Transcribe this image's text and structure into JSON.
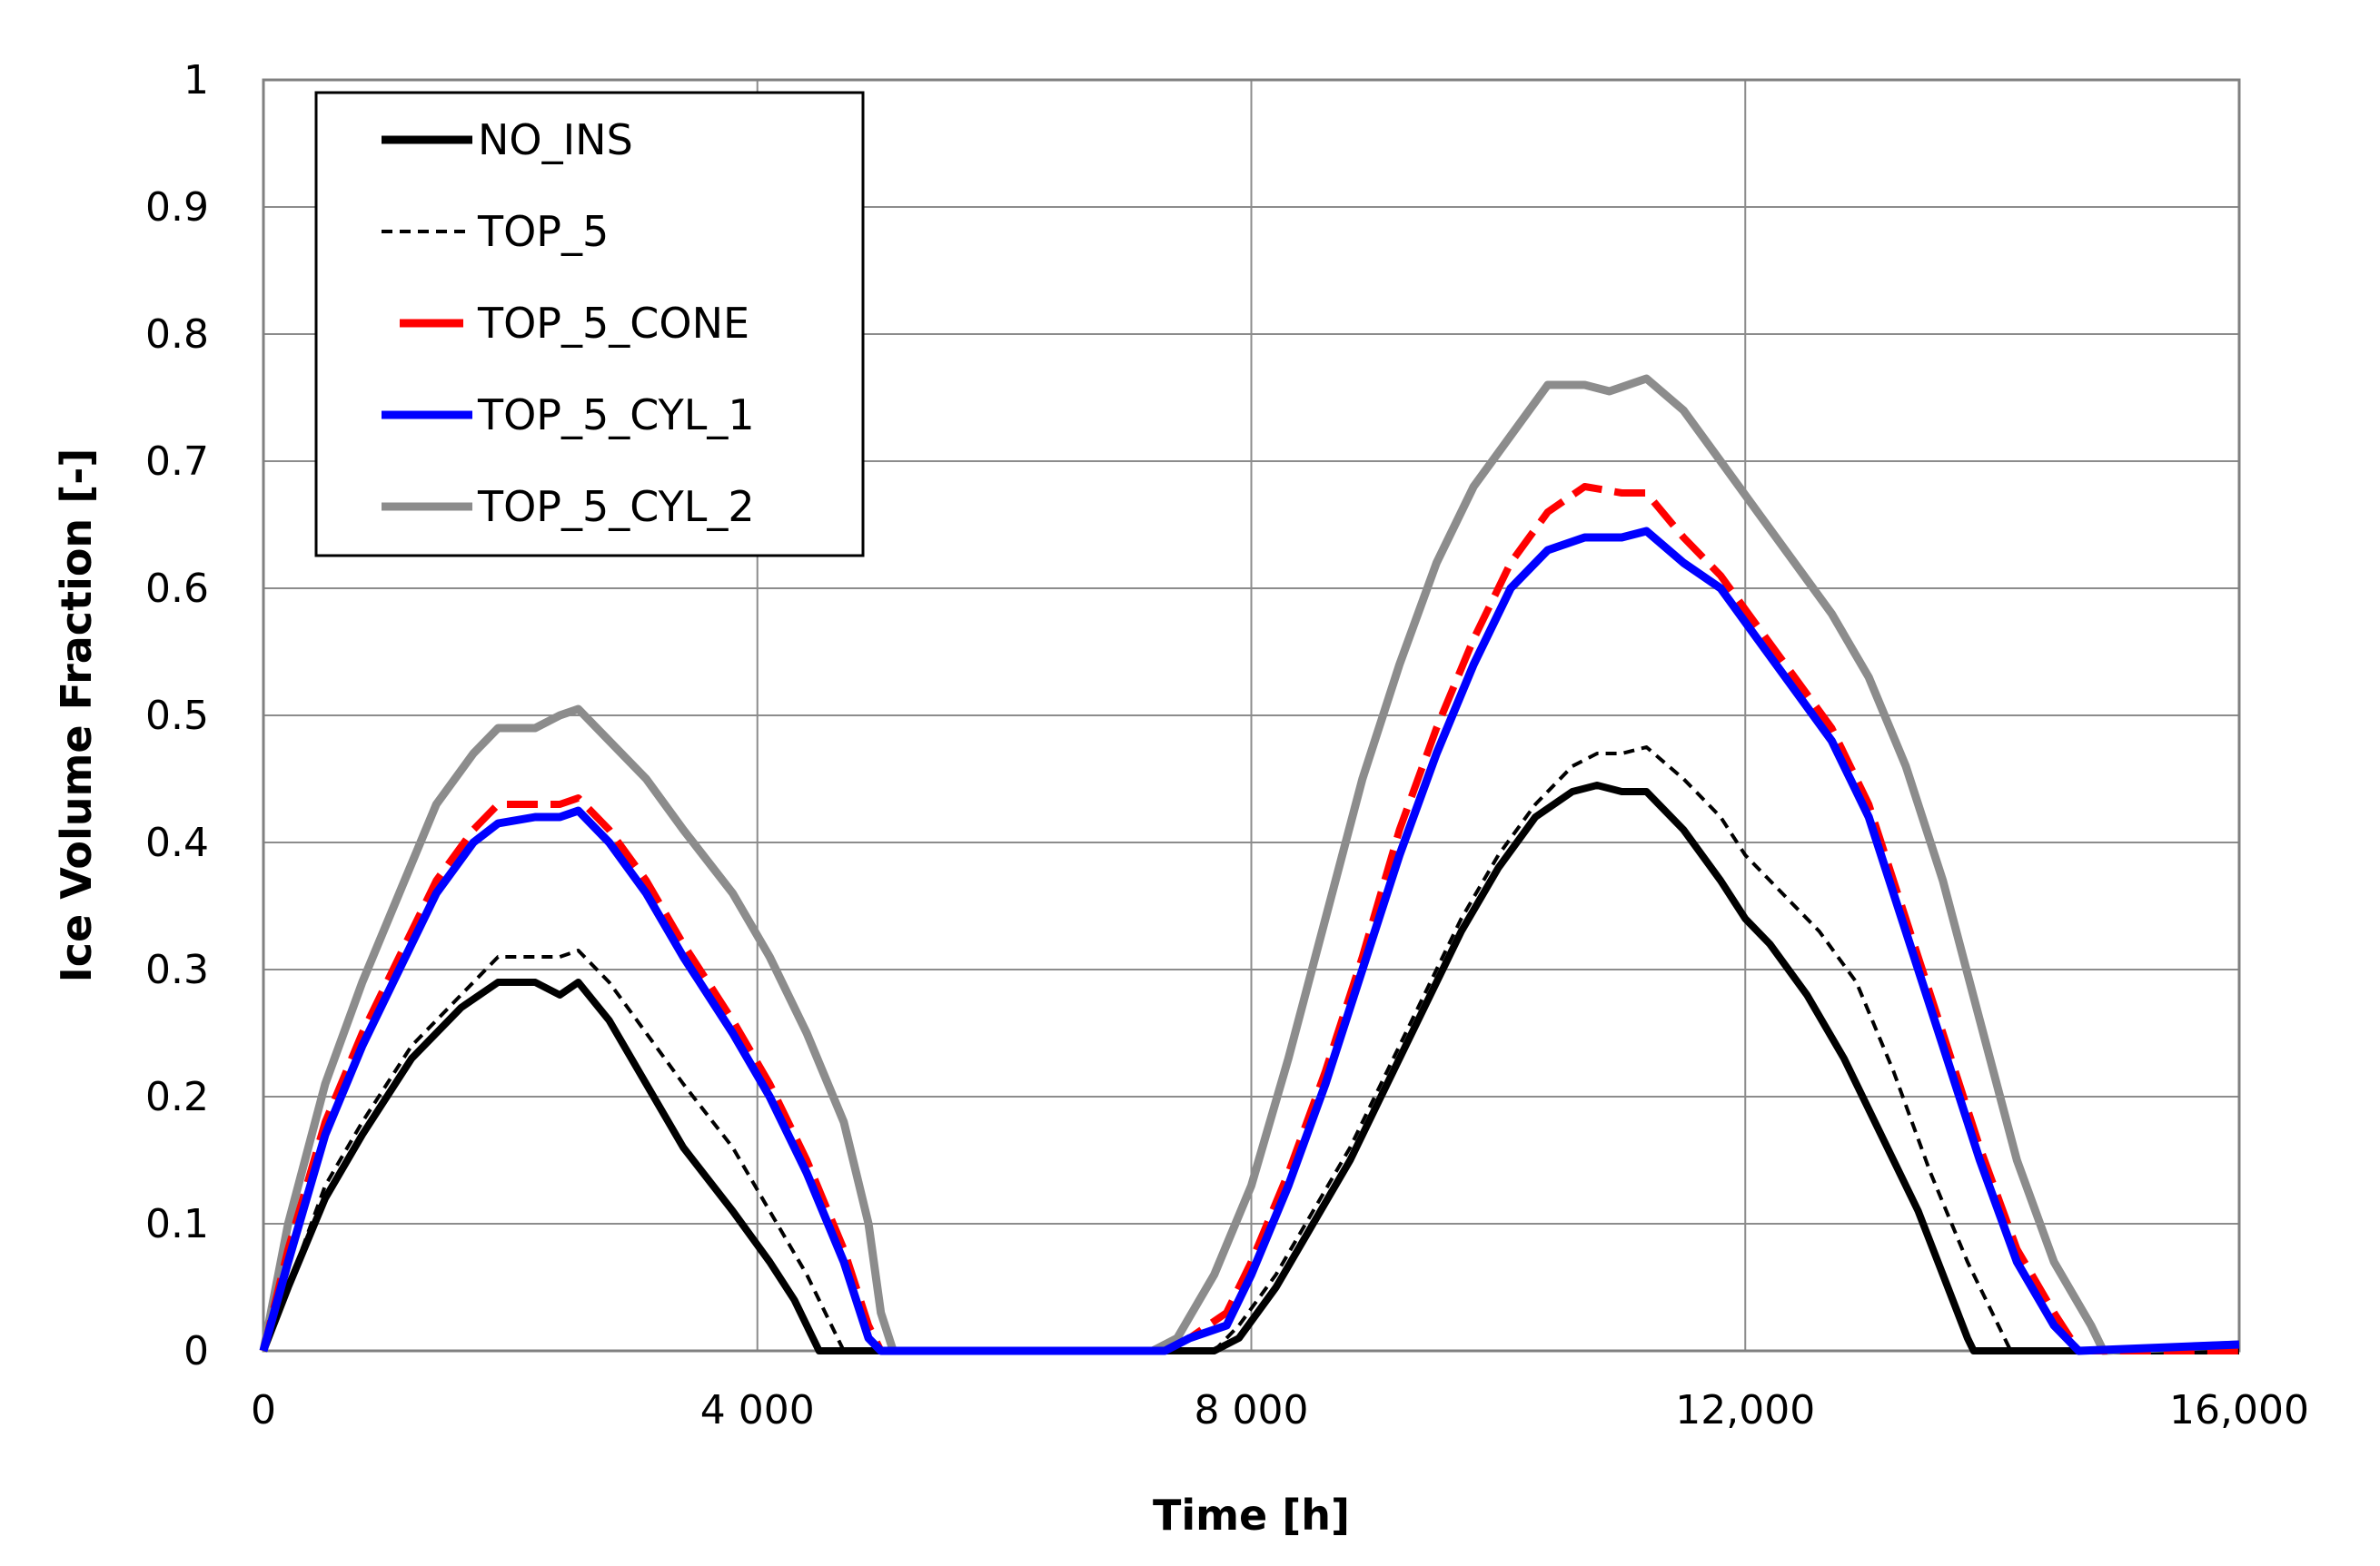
{
  "chart_data": {
    "type": "line",
    "title": "",
    "xlabel": "Time [h]",
    "ylabel": "Ice Volume Fraction [-]",
    "xlim": [
      0,
      16000
    ],
    "ylim": [
      0,
      1
    ],
    "grid": true,
    "legend_position": "top-left",
    "x_ticks": [
      {
        "value": 0,
        "label": "0"
      },
      {
        "value": 4000,
        "label": "4 000"
      },
      {
        "value": 8000,
        "label": "8 000"
      },
      {
        "value": 12000,
        "label": "12,000"
      },
      {
        "value": 16000,
        "label": "16,000"
      }
    ],
    "y_ticks": [
      {
        "value": 0,
        "label": "0"
      },
      {
        "value": 0.1,
        "label": "0.1"
      },
      {
        "value": 0.2,
        "label": "0.2"
      },
      {
        "value": 0.3,
        "label": "0.3"
      },
      {
        "value": 0.4,
        "label": "0.4"
      },
      {
        "value": 0.5,
        "label": "0.5"
      },
      {
        "value": 0.6,
        "label": "0.6"
      },
      {
        "value": 0.7,
        "label": "0.7"
      },
      {
        "value": 0.8,
        "label": "0.8"
      },
      {
        "value": 0.9,
        "label": "0.9"
      },
      {
        "value": 1,
        "label": "1"
      }
    ],
    "series": [
      {
        "name": "NO_INS",
        "color": "#000000",
        "dash": "solid",
        "width": 8,
        "points": [
          [
            0,
            0
          ],
          [
            200,
            0.05
          ],
          [
            500,
            0.12
          ],
          [
            800,
            0.17
          ],
          [
            1200,
            0.23
          ],
          [
            1600,
            0.27
          ],
          [
            1900,
            0.29
          ],
          [
            2200,
            0.29
          ],
          [
            2400,
            0.28
          ],
          [
            2550,
            0.29
          ],
          [
            2800,
            0.26
          ],
          [
            3100,
            0.21
          ],
          [
            3400,
            0.16
          ],
          [
            3800,
            0.11
          ],
          [
            4100,
            0.07
          ],
          [
            4300,
            0.04
          ],
          [
            4450,
            0.01
          ],
          [
            4500,
            0
          ],
          [
            7700,
            0
          ],
          [
            7900,
            0.01
          ],
          [
            8200,
            0.05
          ],
          [
            8500,
            0.1
          ],
          [
            8800,
            0.15
          ],
          [
            9100,
            0.21
          ],
          [
            9400,
            0.27
          ],
          [
            9700,
            0.33
          ],
          [
            10000,
            0.38
          ],
          [
            10300,
            0.42
          ],
          [
            10600,
            0.44
          ],
          [
            10800,
            0.445
          ],
          [
            11000,
            0.44
          ],
          [
            11200,
            0.44
          ],
          [
            11500,
            0.41
          ],
          [
            11800,
            0.37
          ],
          [
            12000,
            0.34
          ],
          [
            12200,
            0.32
          ],
          [
            12500,
            0.28
          ],
          [
            12800,
            0.23
          ],
          [
            13100,
            0.17
          ],
          [
            13400,
            0.11
          ],
          [
            13600,
            0.06
          ],
          [
            13800,
            0.01
          ],
          [
            13850,
            0
          ],
          [
            16000,
            0
          ]
        ]
      },
      {
        "name": "TOP_5",
        "color": "#000000",
        "dash": "dashed",
        "width": 4,
        "points": [
          [
            0,
            0
          ],
          [
            200,
            0.05
          ],
          [
            500,
            0.13
          ],
          [
            800,
            0.18
          ],
          [
            1200,
            0.24
          ],
          [
            1600,
            0.28
          ],
          [
            1900,
            0.31
          ],
          [
            2200,
            0.31
          ],
          [
            2400,
            0.31
          ],
          [
            2550,
            0.315
          ],
          [
            2800,
            0.29
          ],
          [
            3100,
            0.25
          ],
          [
            3400,
            0.21
          ],
          [
            3800,
            0.16
          ],
          [
            4100,
            0.11
          ],
          [
            4400,
            0.06
          ],
          [
            4600,
            0.02
          ],
          [
            4700,
            0
          ],
          [
            7700,
            0
          ],
          [
            7900,
            0.02
          ],
          [
            8200,
            0.06
          ],
          [
            8500,
            0.11
          ],
          [
            8800,
            0.16
          ],
          [
            9100,
            0.22
          ],
          [
            9400,
            0.28
          ],
          [
            9700,
            0.34
          ],
          [
            10000,
            0.39
          ],
          [
            10300,
            0.43
          ],
          [
            10600,
            0.46
          ],
          [
            10800,
            0.47
          ],
          [
            11000,
            0.47
          ],
          [
            11200,
            0.475
          ],
          [
            11500,
            0.45
          ],
          [
            11800,
            0.42
          ],
          [
            12000,
            0.39
          ],
          [
            12300,
            0.36
          ],
          [
            12600,
            0.33
          ],
          [
            12900,
            0.29
          ],
          [
            13200,
            0.22
          ],
          [
            13500,
            0.14
          ],
          [
            13800,
            0.07
          ],
          [
            14000,
            0.03
          ],
          [
            14150,
            0
          ],
          [
            16000,
            0
          ]
        ]
      },
      {
        "name": "TOP_5_CONE",
        "color": "#ff0000",
        "dash": "dashed-long",
        "width": 8,
        "points": [
          [
            0,
            0
          ],
          [
            200,
            0.08
          ],
          [
            500,
            0.18
          ],
          [
            800,
            0.25
          ],
          [
            1100,
            0.31
          ],
          [
            1400,
            0.37
          ],
          [
            1700,
            0.41
          ],
          [
            1900,
            0.43
          ],
          [
            2200,
            0.43
          ],
          [
            2400,
            0.43
          ],
          [
            2550,
            0.435
          ],
          [
            2800,
            0.41
          ],
          [
            3100,
            0.37
          ],
          [
            3400,
            0.32
          ],
          [
            3800,
            0.26
          ],
          [
            4100,
            0.21
          ],
          [
            4400,
            0.15
          ],
          [
            4700,
            0.08
          ],
          [
            4900,
            0.02
          ],
          [
            5000,
            0
          ],
          [
            7300,
            0
          ],
          [
            7500,
            0.01
          ],
          [
            7800,
            0.03
          ],
          [
            8000,
            0.07
          ],
          [
            8300,
            0.14
          ],
          [
            8600,
            0.22
          ],
          [
            8900,
            0.31
          ],
          [
            9200,
            0.41
          ],
          [
            9500,
            0.49
          ],
          [
            9800,
            0.56
          ],
          [
            10100,
            0.62
          ],
          [
            10400,
            0.66
          ],
          [
            10700,
            0.68
          ],
          [
            11000,
            0.675
          ],
          [
            11200,
            0.675
          ],
          [
            11500,
            0.64
          ],
          [
            11800,
            0.61
          ],
          [
            12100,
            0.57
          ],
          [
            12400,
            0.53
          ],
          [
            12700,
            0.49
          ],
          [
            13000,
            0.43
          ],
          [
            13300,
            0.34
          ],
          [
            13600,
            0.25
          ],
          [
            13900,
            0.16
          ],
          [
            14200,
            0.08
          ],
          [
            14500,
            0.03
          ],
          [
            14700,
            0
          ],
          [
            16000,
            0
          ]
        ]
      },
      {
        "name": "TOP_5_CYL_1",
        "color": "#0000ff",
        "dash": "solid",
        "width": 9,
        "points": [
          [
            0,
            0
          ],
          [
            200,
            0.07
          ],
          [
            500,
            0.17
          ],
          [
            800,
            0.24
          ],
          [
            1100,
            0.3
          ],
          [
            1400,
            0.36
          ],
          [
            1700,
            0.4
          ],
          [
            1900,
            0.415
          ],
          [
            2200,
            0.42
          ],
          [
            2400,
            0.42
          ],
          [
            2550,
            0.425
          ],
          [
            2800,
            0.4
          ],
          [
            3100,
            0.36
          ],
          [
            3400,
            0.31
          ],
          [
            3800,
            0.25
          ],
          [
            4100,
            0.2
          ],
          [
            4400,
            0.14
          ],
          [
            4700,
            0.07
          ],
          [
            4900,
            0.01
          ],
          [
            5000,
            0
          ],
          [
            7300,
            0
          ],
          [
            7500,
            0.01
          ],
          [
            7800,
            0.02
          ],
          [
            8000,
            0.06
          ],
          [
            8300,
            0.13
          ],
          [
            8600,
            0.21
          ],
          [
            8900,
            0.3
          ],
          [
            9200,
            0.39
          ],
          [
            9500,
            0.47
          ],
          [
            9800,
            0.54
          ],
          [
            10100,
            0.6
          ],
          [
            10400,
            0.63
          ],
          [
            10700,
            0.64
          ],
          [
            11000,
            0.64
          ],
          [
            11200,
            0.645
          ],
          [
            11500,
            0.62
          ],
          [
            11800,
            0.6
          ],
          [
            12100,
            0.56
          ],
          [
            12400,
            0.52
          ],
          [
            12700,
            0.48
          ],
          [
            13000,
            0.42
          ],
          [
            13300,
            0.33
          ],
          [
            13600,
            0.24
          ],
          [
            13900,
            0.15
          ],
          [
            14200,
            0.07
          ],
          [
            14500,
            0.02
          ],
          [
            14700,
            0
          ],
          [
            16000,
            0.005
          ]
        ]
      },
      {
        "name": "TOP_5_CYL_2",
        "color": "#8c8c8c",
        "dash": "solid",
        "width": 9,
        "points": [
          [
            0,
            0
          ],
          [
            200,
            0.1
          ],
          [
            500,
            0.21
          ],
          [
            800,
            0.29
          ],
          [
            1100,
            0.36
          ],
          [
            1400,
            0.43
          ],
          [
            1700,
            0.47
          ],
          [
            1900,
            0.49
          ],
          [
            2200,
            0.49
          ],
          [
            2400,
            0.5
          ],
          [
            2550,
            0.505
          ],
          [
            2800,
            0.48
          ],
          [
            3100,
            0.45
          ],
          [
            3400,
            0.41
          ],
          [
            3800,
            0.36
          ],
          [
            4100,
            0.31
          ],
          [
            4400,
            0.25
          ],
          [
            4700,
            0.18
          ],
          [
            4900,
            0.1
          ],
          [
            5000,
            0.03
          ],
          [
            5100,
            0
          ],
          [
            7200,
            0
          ],
          [
            7400,
            0.01
          ],
          [
            7700,
            0.06
          ],
          [
            8000,
            0.13
          ],
          [
            8300,
            0.23
          ],
          [
            8600,
            0.34
          ],
          [
            8900,
            0.45
          ],
          [
            9200,
            0.54
          ],
          [
            9500,
            0.62
          ],
          [
            9800,
            0.68
          ],
          [
            10100,
            0.72
          ],
          [
            10400,
            0.76
          ],
          [
            10700,
            0.76
          ],
          [
            10900,
            0.755
          ],
          [
            11200,
            0.765
          ],
          [
            11500,
            0.74
          ],
          [
            11800,
            0.7
          ],
          [
            12100,
            0.66
          ],
          [
            12400,
            0.62
          ],
          [
            12700,
            0.58
          ],
          [
            13000,
            0.53
          ],
          [
            13300,
            0.46
          ],
          [
            13600,
            0.37
          ],
          [
            13900,
            0.26
          ],
          [
            14200,
            0.15
          ],
          [
            14500,
            0.07
          ],
          [
            14800,
            0.02
          ],
          [
            14900,
            0
          ],
          [
            16000,
            0.005
          ]
        ]
      }
    ]
  }
}
